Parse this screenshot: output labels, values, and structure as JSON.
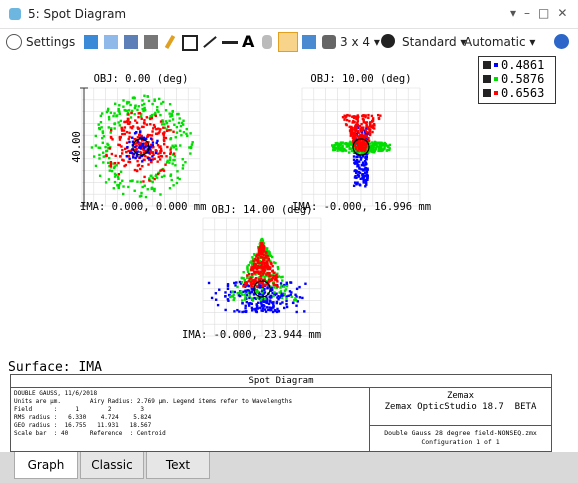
{
  "window": {
    "title": "5: Spot Diagram"
  },
  "toolbar": {
    "settings": "Settings",
    "layout": "3 x 4",
    "standard": "Standard",
    "automatic": "Automatic"
  },
  "legend": [
    {
      "label": "0.4861",
      "color": "#0000ff"
    },
    {
      "label": "0.5876",
      "color": "#00dd00"
    },
    {
      "label": "0.6563",
      "color": "#ff0000"
    }
  ],
  "plots": [
    {
      "obj": "OBJ: 0.00 (deg)",
      "ima": "IMA: 0.000, 0.000 mm"
    },
    {
      "obj": "OBJ: 10.00 (deg)",
      "ima": "IMA: -0.000, 16.996 mm"
    },
    {
      "obj": "OBJ: 14.00 (deg)",
      "ima": "IMA: -0.000, 23.944 mm"
    }
  ],
  "scale_label": "40.00",
  "surface": "Surface: IMA",
  "footer": {
    "title": "Spot Diagram",
    "lines": [
      "DOUBLE GAUSS, 11/6/2018",
      "Units are µm.        Airy Radius: 2.769 µm. Legend items refer to Wavelengths",
      "Field      :     1        2        3",
      "RMS radius :   6.330    4.724    5.824",
      "GEO radius :  16.755   11.931   18.567",
      "Scale bar  : 40      Reference  : Centroid"
    ],
    "brand": "Zemax",
    "product": "Zemax OpticStudio 18.7  BETA",
    "file": "Double Gauss 28 degree field-NONSEQ.zmx",
    "config": "Configuration 1 of 1"
  },
  "tabs": [
    "Graph",
    "Classic",
    "Text"
  ]
}
